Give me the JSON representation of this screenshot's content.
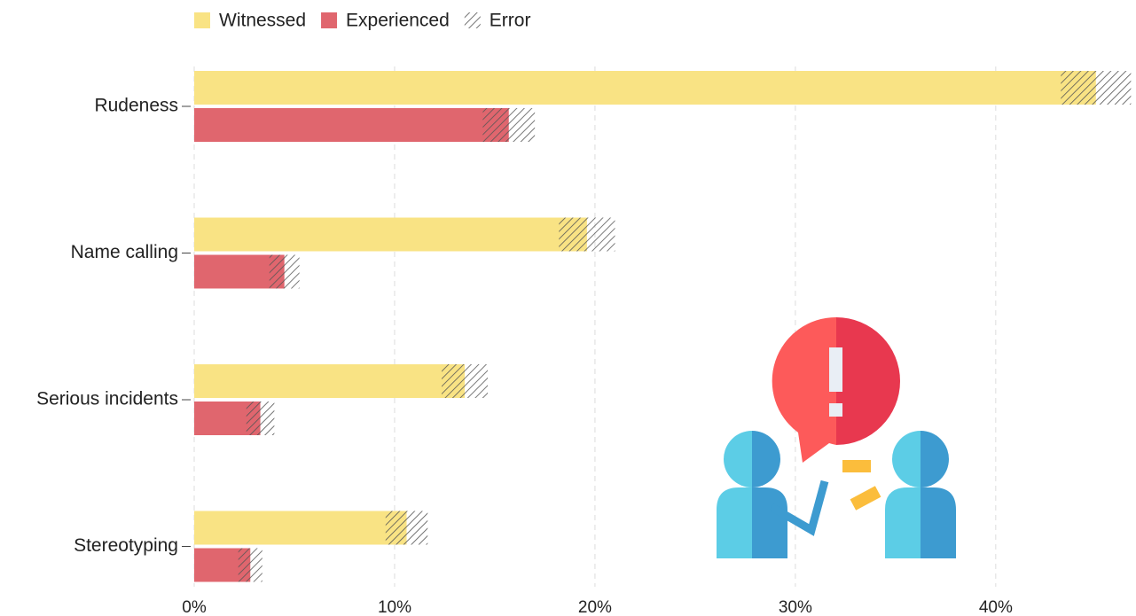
{
  "chart_data": {
    "type": "bar",
    "orientation": "horizontal",
    "categories": [
      "Rudeness",
      "Name calling",
      "Serious incidents",
      "Stereotyping"
    ],
    "series": [
      {
        "name": "Witnessed",
        "color": "#f9e384",
        "values": [
          45,
          19.6,
          13.5,
          10.6
        ],
        "errors": [
          1.75,
          1.4,
          1.15,
          1.05
        ]
      },
      {
        "name": "Experienced",
        "color": "#e0666e",
        "values": [
          15.7,
          4.5,
          3.3,
          2.8
        ],
        "errors": [
          1.3,
          0.75,
          0.7,
          0.6
        ]
      }
    ],
    "error_legend": "Error",
    "xlim": [
      0,
      47
    ],
    "xticks": [
      {
        "value": 0,
        "label": "0%"
      },
      {
        "value": 10,
        "label": "10%"
      },
      {
        "value": 20,
        "label": "20%"
      },
      {
        "value": 30,
        "label": "30%"
      },
      {
        "value": 40,
        "label": "40%"
      }
    ],
    "grid": true,
    "legend": "top"
  }
}
